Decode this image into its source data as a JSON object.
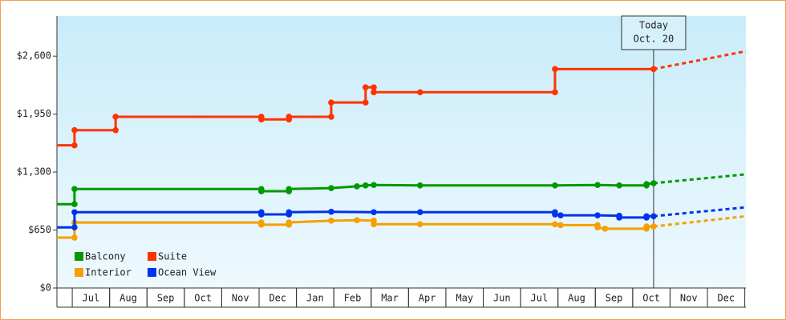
{
  "chart_data": {
    "type": "line",
    "ylim": [
      0,
      3050
    ],
    "yticks": [
      {
        "value": 0,
        "label": "$0"
      },
      {
        "value": 650,
        "label": "$650"
      },
      {
        "value": 1300,
        "label": "$1,300"
      },
      {
        "value": 1950,
        "label": "$1,950"
      },
      {
        "value": 2600,
        "label": "$2,600"
      }
    ],
    "xlim": [
      -0.41,
      18.03
    ],
    "xticks": [
      {
        "value": 0.5,
        "label": "Jul"
      },
      {
        "value": 1.5,
        "label": "Aug"
      },
      {
        "value": 2.5,
        "label": "Sep"
      },
      {
        "value": 3.5,
        "label": "Oct"
      },
      {
        "value": 4.5,
        "label": "Nov"
      },
      {
        "value": 5.5,
        "label": "Dec"
      },
      {
        "value": 6.5,
        "label": "Jan"
      },
      {
        "value": 7.5,
        "label": "Feb"
      },
      {
        "value": 8.5,
        "label": "Mar"
      },
      {
        "value": 9.5,
        "label": "Apr"
      },
      {
        "value": 10.5,
        "label": "May"
      },
      {
        "value": 11.5,
        "label": "Jun"
      },
      {
        "value": 12.5,
        "label": "Jul"
      },
      {
        "value": 13.5,
        "label": "Aug"
      },
      {
        "value": 14.5,
        "label": "Sep"
      },
      {
        "value": 15.5,
        "label": "Oct"
      },
      {
        "value": 16.5,
        "label": "Nov"
      },
      {
        "value": 17.5,
        "label": "Dec"
      }
    ],
    "annotation": {
      "x": 15.56,
      "lines": [
        "Today",
        "Oct. 20"
      ]
    },
    "series": [
      {
        "name": "Balcony",
        "color": "#009900",
        "x": [
          -0.41,
          0.06,
          0.06,
          5.06,
          5.06,
          5.8,
          5.8,
          6.93,
          7.62,
          7.85,
          8.07,
          9.31,
          12.92,
          14.06,
          14.64,
          15.37,
          15.37,
          15.56
        ],
        "values": [
          940,
          940,
          1110,
          1110,
          1085,
          1085,
          1110,
          1120,
          1140,
          1150,
          1155,
          1150,
          1150,
          1155,
          1150,
          1150,
          1165,
          1175
        ],
        "forecast_x": 18.03,
        "forecast_value": 1275
      },
      {
        "name": "Suite",
        "color": "#ff3300",
        "x": [
          -0.41,
          0.06,
          0.06,
          1.16,
          1.16,
          5.06,
          5.06,
          5.8,
          5.8,
          6.93,
          6.93,
          7.85,
          7.85,
          8.07,
          8.07,
          9.31,
          12.92,
          12.92,
          15.56
        ],
        "values": [
          1600,
          1600,
          1770,
          1770,
          1920,
          1920,
          1890,
          1890,
          1920,
          1920,
          2080,
          2080,
          2250,
          2250,
          2195,
          2195,
          2195,
          2455,
          2455
        ],
        "forecast_x": 18.03,
        "forecast_value": 2655
      },
      {
        "name": "Interior",
        "color": "#f5a000",
        "x": [
          -0.41,
          0.06,
          0.06,
          5.06,
          5.06,
          5.8,
          5.8,
          6.93,
          7.62,
          8.07,
          8.07,
          9.31,
          12.92,
          13.07,
          14.06,
          14.06,
          14.26,
          15.37,
          15.37,
          15.56
        ],
        "values": [
          565,
          565,
          735,
          735,
          710,
          710,
          735,
          755,
          760,
          755,
          715,
          715,
          715,
          705,
          705,
          680,
          665,
          665,
          690,
          690
        ],
        "forecast_x": 18.03,
        "forecast_value": 805
      },
      {
        "name": "Ocean View",
        "color": "#0033ee",
        "x": [
          -0.41,
          0.06,
          0.06,
          5.06,
          5.06,
          5.8,
          5.8,
          6.93,
          8.07,
          9.31,
          12.92,
          12.92,
          13.07,
          14.06,
          14.64,
          14.64,
          15.37,
          15.37,
          15.56
        ],
        "values": [
          680,
          680,
          850,
          850,
          825,
          825,
          850,
          855,
          850,
          850,
          850,
          825,
          815,
          815,
          810,
          790,
          790,
          805,
          805
        ],
        "forecast_x": 18.03,
        "forecast_value": 905
      }
    ]
  }
}
